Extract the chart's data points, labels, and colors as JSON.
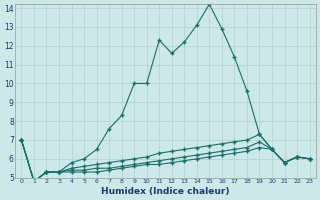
{
  "xlabel": "Humidex (Indice chaleur)",
  "bg_color": "#cce8e8",
  "line_color": "#1a6e6a",
  "grid_color": "#b0d0d0",
  "xlim": [
    -0.5,
    23.5
  ],
  "ylim": [
    5,
    14
  ],
  "xticks": [
    0,
    1,
    2,
    3,
    4,
    5,
    6,
    7,
    8,
    9,
    10,
    11,
    12,
    13,
    14,
    15,
    16,
    17,
    18,
    19,
    20,
    21,
    22,
    23
  ],
  "yticks": [
    5,
    6,
    7,
    8,
    9,
    10,
    11,
    12,
    13,
    14
  ],
  "series": [
    [
      7.0,
      4.8,
      5.3,
      5.3,
      5.8,
      6.0,
      6.5,
      7.6,
      8.3,
      10.0,
      10.0,
      12.3,
      11.6,
      12.2,
      13.1,
      14.2,
      12.9,
      11.4,
      9.6,
      7.3,
      6.5,
      5.8,
      6.1,
      6.0
    ],
    [
      7.0,
      4.8,
      5.3,
      5.3,
      5.5,
      5.6,
      5.7,
      5.8,
      5.9,
      6.0,
      6.1,
      6.3,
      6.4,
      6.5,
      6.6,
      6.7,
      6.8,
      6.9,
      7.0,
      7.3,
      6.5,
      5.8,
      6.1,
      6.0
    ],
    [
      7.0,
      4.8,
      5.3,
      5.3,
      5.4,
      5.4,
      5.5,
      5.5,
      5.6,
      5.7,
      5.8,
      5.9,
      6.0,
      6.1,
      6.2,
      6.3,
      6.4,
      6.5,
      6.6,
      6.9,
      6.5,
      5.8,
      6.1,
      6.0
    ],
    [
      7.0,
      4.8,
      5.3,
      5.3,
      5.3,
      5.3,
      5.3,
      5.4,
      5.5,
      5.6,
      5.7,
      5.7,
      5.8,
      5.9,
      6.0,
      6.1,
      6.2,
      6.3,
      6.4,
      6.6,
      6.5,
      5.8,
      6.1,
      6.0
    ]
  ]
}
